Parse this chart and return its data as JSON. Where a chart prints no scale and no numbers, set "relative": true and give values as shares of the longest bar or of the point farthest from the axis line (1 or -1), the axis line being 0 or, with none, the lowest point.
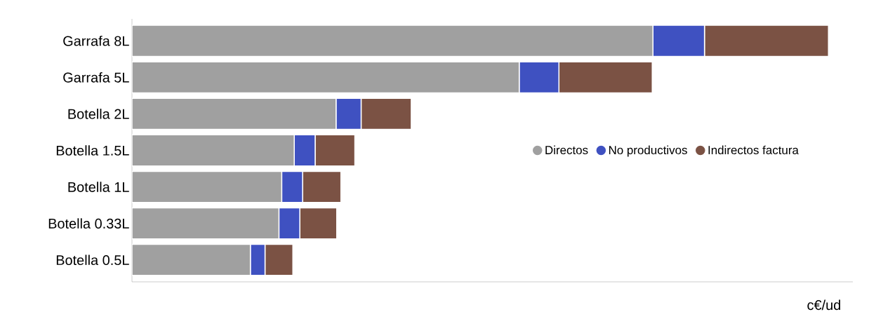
{
  "chart_data": {
    "type": "bar",
    "orientation": "horizontal",
    "stacked": true,
    "relative": true,
    "xlabel": "c€/ud",
    "categories": [
      "Garrafa 8L",
      "Garrafa 5L",
      "Botella 2L",
      "Botella 1.5L",
      "Botella 1L",
      "Botella 0.33L",
      "Botella 0.5L"
    ],
    "series": [
      {
        "name": "Directos",
        "color": "#a0a0a0",
        "values": [
          0.748,
          0.556,
          0.293,
          0.233,
          0.215,
          0.211,
          0.17
        ]
      },
      {
        "name": "No productivos",
        "color": "#3f51c1",
        "values": [
          0.074,
          0.057,
          0.036,
          0.03,
          0.03,
          0.03,
          0.021
        ]
      },
      {
        "name": "Indirectos factura",
        "color": "#7b5244",
        "values": [
          0.178,
          0.134,
          0.072,
          0.057,
          0.055,
          0.053,
          0.04
        ]
      }
    ],
    "legend": "right"
  }
}
